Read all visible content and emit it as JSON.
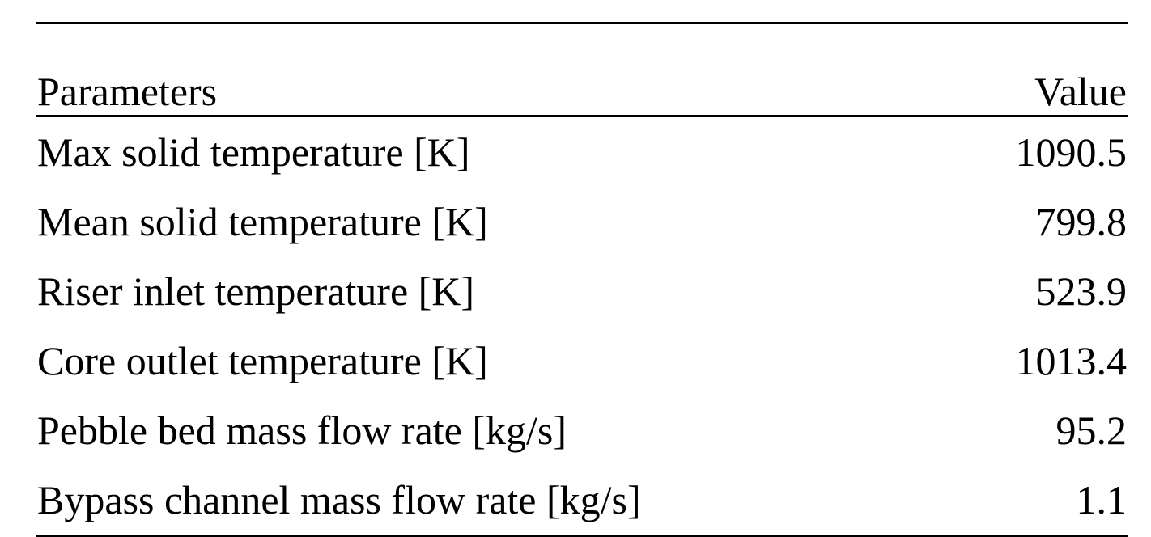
{
  "table": {
    "headers": {
      "parameter": "Parameters",
      "value": "Value"
    },
    "rows": [
      {
        "parameter": "Max solid temperature [K]",
        "value": "1090.5"
      },
      {
        "parameter": "Mean solid temperature [K]",
        "value": "799.8"
      },
      {
        "parameter": "Riser inlet temperature [K]",
        "value": "523.9"
      },
      {
        "parameter": "Core outlet temperature [K]",
        "value": "1013.4"
      },
      {
        "parameter": "Pebble bed mass flow rate [kg/s]",
        "value": "95.2"
      },
      {
        "parameter": "Bypass channel mass flow rate [kg/s]",
        "value": "1.1"
      }
    ]
  }
}
